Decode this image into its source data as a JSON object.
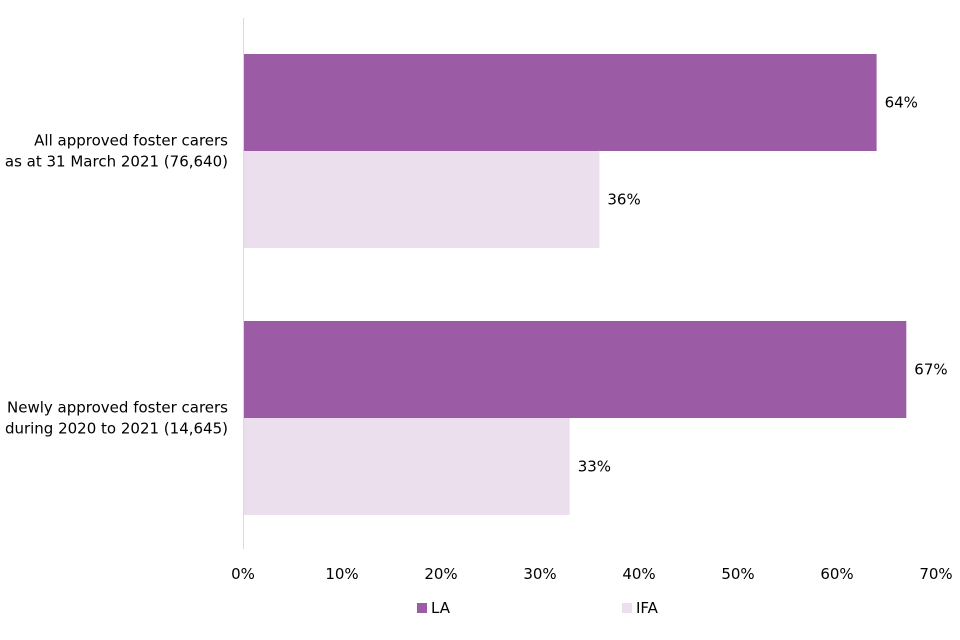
{
  "chart_data": {
    "type": "bar",
    "orientation": "horizontal",
    "categories": [
      [
        "All approved foster carers",
        "as at 31 March 2021 (76,640)"
      ],
      [
        "Newly approved foster carers",
        "during 2020 to 2021 (14,645)"
      ]
    ],
    "series": [
      {
        "name": "LA",
        "values": [
          64,
          67
        ],
        "color": "#9b5ba5",
        "labels": [
          "64%",
          "67%"
        ]
      },
      {
        "name": "IFA",
        "values": [
          36,
          33
        ],
        "color": "#ebdfed",
        "labels": [
          "36%",
          "33%"
        ]
      }
    ],
    "xlim": [
      0,
      70
    ],
    "xticks": [
      "0%",
      "10%",
      "20%",
      "30%",
      "40%",
      "50%",
      "60%",
      "70%"
    ],
    "grid": false,
    "legend_position": "bottom"
  }
}
